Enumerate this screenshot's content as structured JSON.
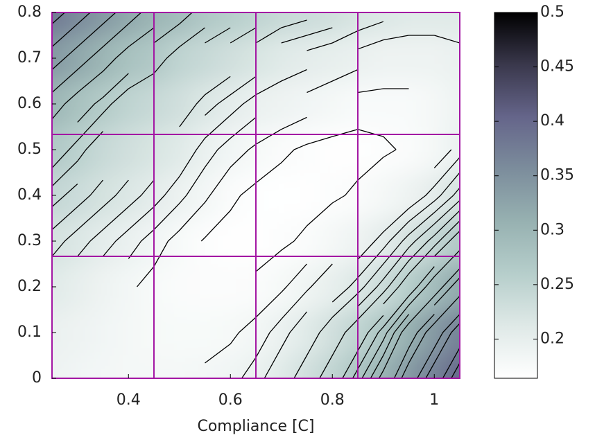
{
  "chart_data": {
    "type": "contour",
    "xlabel": "Compliance [C]",
    "xlim": [
      0.25,
      1.05
    ],
    "ylim": [
      0,
      0.8
    ],
    "xticks": [
      0.4,
      0.6,
      0.8,
      1
    ],
    "yticks": [
      0,
      0.1,
      0.2,
      0.3,
      0.4,
      0.5,
      0.6,
      0.7,
      0.8
    ],
    "x": [
      0.25,
      0.3,
      0.35,
      0.4,
      0.45,
      0.5,
      0.55,
      0.6,
      0.65,
      0.7,
      0.75,
      0.8,
      0.85,
      0.9,
      0.95,
      1.0,
      1.05
    ],
    "y": [
      0,
      0.1,
      0.2,
      0.3,
      0.4,
      0.5,
      0.6,
      0.7,
      0.8
    ],
    "z": [
      [
        0.19,
        0.185,
        0.182,
        0.18,
        0.18,
        0.18,
        0.182,
        0.186,
        0.195,
        0.21,
        0.23,
        0.25,
        0.275,
        0.305,
        0.34,
        0.37,
        0.4
      ],
      [
        0.195,
        0.19,
        0.185,
        0.18,
        0.178,
        0.176,
        0.176,
        0.178,
        0.184,
        0.195,
        0.21,
        0.23,
        0.25,
        0.275,
        0.31,
        0.34,
        0.37
      ],
      [
        0.21,
        0.2,
        0.19,
        0.182,
        0.176,
        0.172,
        0.17,
        0.17,
        0.172,
        0.178,
        0.188,
        0.2,
        0.215,
        0.235,
        0.26,
        0.29,
        0.32
      ],
      [
        0.225,
        0.215,
        0.205,
        0.195,
        0.185,
        0.176,
        0.169,
        0.166,
        0.166,
        0.168,
        0.172,
        0.18,
        0.19,
        0.205,
        0.225,
        0.245,
        0.27
      ],
      [
        0.245,
        0.235,
        0.225,
        0.215,
        0.205,
        0.193,
        0.182,
        0.172,
        0.167,
        0.165,
        0.166,
        0.168,
        0.172,
        0.18,
        0.19,
        0.205,
        0.225
      ],
      [
        0.27,
        0.255,
        0.24,
        0.23,
        0.22,
        0.21,
        0.195,
        0.185,
        0.178,
        0.172,
        0.168,
        0.166,
        0.166,
        0.168,
        0.172,
        0.18,
        0.195
      ],
      [
        0.3,
        0.28,
        0.265,
        0.25,
        0.24,
        0.23,
        0.215,
        0.205,
        0.195,
        0.19,
        0.185,
        0.18,
        0.175,
        0.175,
        0.175,
        0.18,
        0.19
      ],
      [
        0.34,
        0.32,
        0.3,
        0.28,
        0.27,
        0.25,
        0.24,
        0.23,
        0.22,
        0.21,
        0.205,
        0.2,
        0.195,
        0.19,
        0.19,
        0.19,
        0.195
      ],
      [
        0.38,
        0.36,
        0.34,
        0.32,
        0.3,
        0.29,
        0.27,
        0.26,
        0.25,
        0.24,
        0.235,
        0.23,
        0.22,
        0.215,
        0.21,
        0.21,
        0.21
      ]
    ],
    "levels": [
      0.17,
      0.18,
      0.19,
      0.2,
      0.21,
      0.22,
      0.23,
      0.24,
      0.25,
      0.26,
      0.27,
      0.28,
      0.29,
      0.3,
      0.31,
      0.32,
      0.33,
      0.34,
      0.35,
      0.36,
      0.37,
      0.38,
      0.39
    ],
    "clim": [
      0.164,
      0.5
    ],
    "cticks": [
      0.2,
      0.25,
      0.3,
      0.35,
      0.4,
      0.45,
      0.5
    ],
    "colormap": [
      "#ffffff",
      "#dfe9e7",
      "#b6cecb",
      "#97b1b1",
      "#7c8d9c",
      "#65658a",
      "#3a384c",
      "#000000"
    ],
    "grid_x": [
      0.45,
      0.65,
      0.85
    ],
    "grid_y": [
      0.2667,
      0.5333
    ],
    "grid_color": "#a316a3"
  }
}
